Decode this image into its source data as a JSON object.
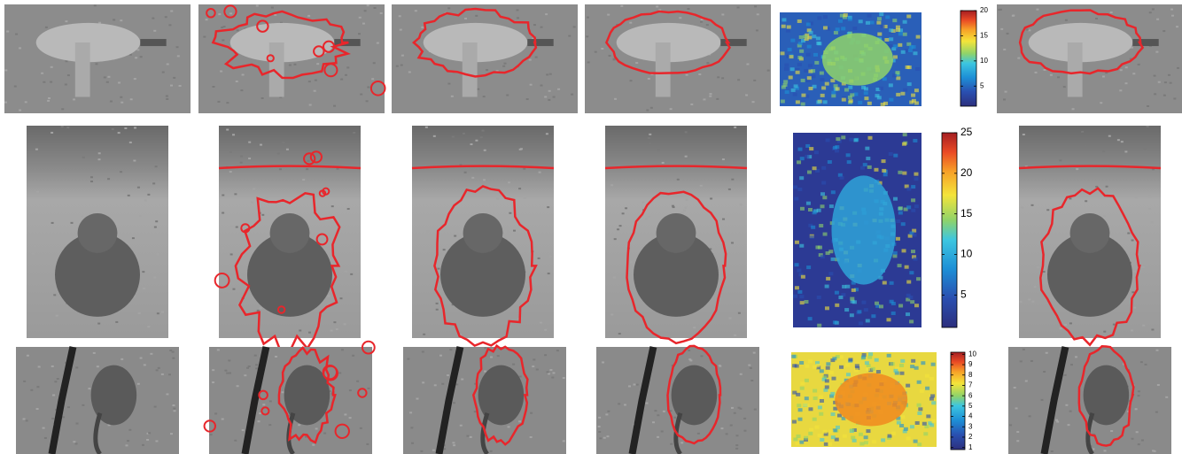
{
  "figure": {
    "rows": [
      {
        "colorbar": {
          "lim": [
            1,
            20
          ],
          "ticks": [
            5,
            10,
            15,
            20
          ]
        }
      },
      {
        "colorbar": {
          "lim": [
            1,
            25
          ],
          "ticks": [
            5,
            10,
            15,
            20,
            25
          ]
        }
      },
      {
        "colorbar": {
          "lim": [
            0.8,
            10.2
          ],
          "ticks": [
            1,
            2,
            3,
            4,
            5,
            6,
            7,
            8,
            9,
            10
          ]
        }
      }
    ]
  }
}
